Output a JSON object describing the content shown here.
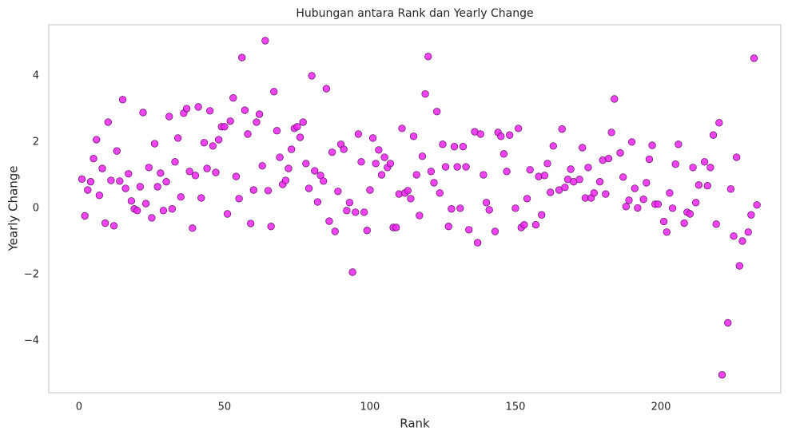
{
  "chart_data": {
    "type": "scatter",
    "title": "Hubungan antara Rank dan Yearly Change",
    "xlabel": "Rank",
    "ylabel": "Yearly Change",
    "color": "#ee22ee",
    "edgecolor": "#5a1060",
    "grid": false,
    "xlim": [
      -10.4,
      241.2
    ],
    "ylim": [
      -5.57,
      5.54
    ],
    "xticks": [
      0,
      50,
      100,
      150,
      200
    ],
    "yticks": [
      {
        "value": -4,
        "label": "−4"
      },
      {
        "value": -2,
        "label": "−2"
      },
      0,
      2,
      4
    ],
    "x": [
      1,
      2,
      3,
      4,
      5,
      6,
      7,
      8,
      9,
      10,
      11,
      12,
      13,
      14,
      15,
      16,
      17,
      18,
      19,
      20,
      21,
      22,
      23,
      24,
      25,
      26,
      27,
      28,
      29,
      30,
      31,
      32,
      33,
      34,
      35,
      36,
      37,
      38,
      39,
      40,
      41,
      42,
      43,
      44,
      45,
      46,
      47,
      48,
      49,
      50,
      51,
      52,
      53,
      54,
      55,
      56,
      57,
      58,
      59,
      60,
      61,
      62,
      63,
      64,
      65,
      66,
      67,
      68,
      69,
      70,
      71,
      72,
      73,
      74,
      75,
      76,
      77,
      78,
      79,
      80,
      81,
      82,
      83,
      84,
      85,
      86,
      87,
      88,
      89,
      90,
      91,
      92,
      93,
      94,
      95,
      96,
      97,
      98,
      99,
      100,
      101,
      102,
      103,
      104,
      105,
      106,
      107,
      108,
      109,
      110,
      111,
      112,
      113,
      114,
      115,
      116,
      117,
      118,
      119,
      120,
      121,
      122,
      123,
      124,
      125,
      126,
      127,
      128,
      129,
      130,
      131,
      132,
      133,
      134,
      136,
      137,
      138,
      139,
      140,
      141,
      143,
      144,
      145,
      146,
      147,
      148,
      150,
      151,
      152,
      153,
      154,
      155,
      157,
      158,
      159,
      160,
      161,
      162,
      163,
      165,
      166,
      167,
      168,
      169,
      170,
      172,
      173,
      174,
      175,
      176,
      177,
      179,
      180,
      181,
      182,
      183,
      184,
      186,
      187,
      188,
      189,
      190,
      191,
      192,
      194,
      195,
      196,
      197,
      198,
      199,
      201,
      202,
      203,
      204,
      205,
      206,
      208,
      209,
      210,
      211,
      212,
      213,
      215,
      216,
      217,
      218,
      219,
      220,
      221,
      223,
      224,
      225,
      226,
      227,
      228,
      230,
      231,
      232,
      233
    ],
    "values": [
      0.88,
      -0.23,
      0.55,
      0.8,
      1.5,
      2.07,
      0.39,
      1.2,
      -0.45,
      2.6,
      0.84,
      -0.53,
      1.73,
      0.82,
      3.28,
      0.6,
      1.04,
      0.22,
      -0.02,
      -0.07,
      0.65,
      2.89,
      0.14,
      1.23,
      -0.29,
      1.95,
      0.65,
      1.06,
      -0.07,
      0.8,
      2.77,
      -0.02,
      1.4,
      2.12,
      0.34,
      2.87,
      3.01,
      1.11,
      -0.6,
      0.99,
      3.06,
      0.31,
      1.98,
      1.2,
      2.94,
      1.88,
      1.08,
      2.07,
      2.46,
      2.46,
      -0.17,
      2.63,
      3.33,
      0.96,
      0.29,
      4.55,
      2.96,
      2.24,
      -0.46,
      0.55,
      2.6,
      2.84,
      1.28,
      5.06,
      0.53,
      -0.55,
      3.52,
      2.34,
      1.54,
      0.72,
      0.84,
      1.2,
      1.78,
      2.41,
      2.46,
      2.14,
      2.6,
      1.35,
      0.6,
      4.0,
      1.13,
      0.19,
      0.99,
      0.82,
      3.61,
      -0.39,
      1.69,
      -0.7,
      0.51,
      1.93,
      1.78,
      -0.07,
      0.17,
      -1.93,
      -0.12,
      2.24,
      1.4,
      -0.12,
      -0.67,
      0.55,
      2.12,
      1.35,
      1.76,
      1.01,
      1.54,
      1.23,
      1.35,
      -0.58,
      -0.58,
      0.43,
      2.41,
      0.46,
      0.53,
      0.29,
      2.17,
      1.01,
      -0.22,
      1.57,
      3.45,
      4.58,
      1.11,
      0.77,
      2.92,
      0.46,
      1.93,
      1.25,
      -0.55,
      -0.02,
      1.86,
      1.25,
      0.0,
      1.86,
      1.25,
      -0.65,
      2.31,
      -1.04,
      2.24,
      1.01,
      0.17,
      -0.05,
      -0.7,
      2.29,
      2.17,
      1.64,
      1.11,
      2.21,
      0.0,
      2.41,
      -0.58,
      -0.5,
      0.29,
      1.16,
      -0.5,
      0.96,
      -0.2,
      0.99,
      1.35,
      0.48,
      1.88,
      0.55,
      2.39,
      0.63,
      0.87,
      1.18,
      0.8,
      0.87,
      1.83,
      0.31,
      1.23,
      0.31,
      0.46,
      0.8,
      1.45,
      0.43,
      1.5,
      2.29,
      3.3,
      1.67,
      0.94,
      0.05,
      0.24,
      2.0,
      0.6,
      0.01,
      0.27,
      0.77,
      1.48,
      1.9,
      0.12,
      0.12,
      -0.4,
      -0.72,
      0.46,
      0.0,
      1.33,
      1.93,
      -0.45,
      -0.12,
      -0.17,
      1.23,
      0.17,
      0.7,
      1.4,
      0.68,
      1.23,
      2.21,
      -0.48,
      2.58,
      -5.03,
      -3.46,
      0.58,
      -0.84,
      1.54,
      -1.74,
      -0.99,
      -0.72,
      -0.2,
      4.53,
      0.1
    ]
  }
}
